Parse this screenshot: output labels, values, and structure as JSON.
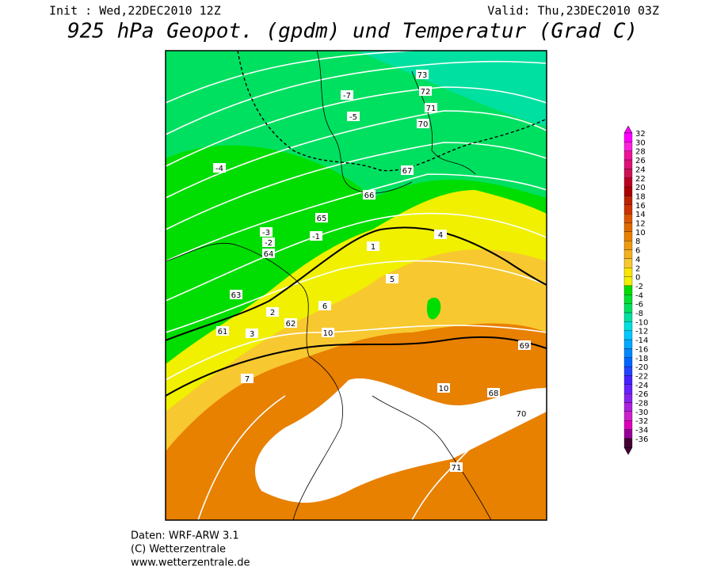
{
  "header": {
    "init": "Init : Wed,22DEC2010 12Z",
    "valid": "Valid: Thu,23DEC2010 03Z",
    "title": "925 hPa Geopot. (gpdm) und Temperatur (Grad C)"
  },
  "footer": {
    "line1": "Daten: WRF-ARW 3.1",
    "line2": "(C) Wetterzentrale",
    "line3": "www.wetterzentrale.de"
  },
  "legend": {
    "labels": [
      32,
      30,
      28,
      26,
      24,
      22,
      20,
      18,
      16,
      14,
      12,
      10,
      8,
      6,
      4,
      2,
      0,
      -2,
      -4,
      -6,
      -8,
      -10,
      -12,
      -14,
      -16,
      -18,
      -20,
      -22,
      -24,
      -26,
      -28,
      -30,
      -32,
      -34,
      -36
    ],
    "colors": [
      "#ff00ff",
      "#ff22dd",
      "#ee1199",
      "#dd1177",
      "#cc1155",
      "#bb0022",
      "#aa0000",
      "#bb2200",
      "#cc3300",
      "#dd5500",
      "#e06a00",
      "#e88000",
      "#f09a10",
      "#f5b020",
      "#f8c830",
      "#fae600",
      "#f0f000",
      "#00dd00",
      "#00e030",
      "#00e060",
      "#00e0a0",
      "#00e0e0",
      "#00c8ff",
      "#00aaff",
      "#0088ff",
      "#0066ff",
      "#2244ff",
      "#4422ff",
      "#6622ff",
      "#8822ee",
      "#aa22dd",
      "#cc22cc",
      "#dd00bb",
      "#990099",
      "#440033"
    ]
  },
  "map": {
    "contour_labels": [
      "73",
      "72",
      "71",
      "70",
      "67",
      "66",
      "65",
      "64",
      "63",
      "62",
      "61",
      "69",
      "68",
      "-7",
      "-5",
      "-4",
      "-3",
      "-2",
      "-1",
      "1",
      "2",
      "3",
      "4",
      "5",
      "6",
      "7",
      "10",
      "10",
      "70",
      "71"
    ]
  }
}
